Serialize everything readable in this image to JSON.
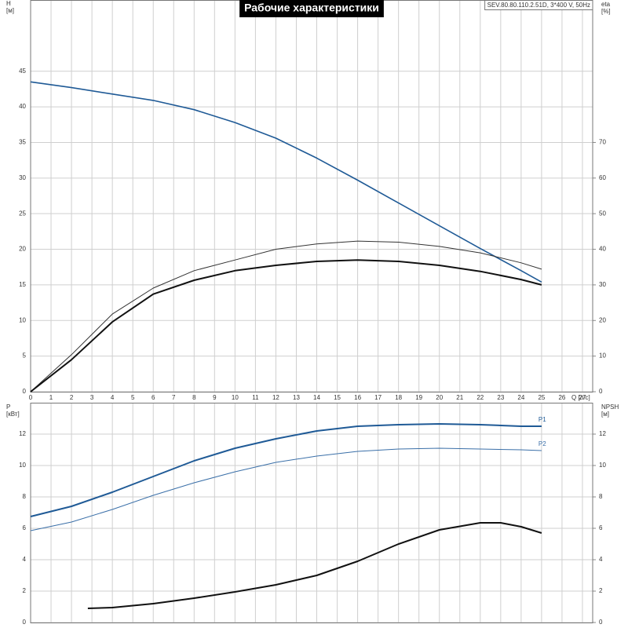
{
  "chart_data": [
    {
      "type": "line",
      "title": "Рабочие характеристики",
      "subtitle": "SEV.80.80.110.2.51D, 3*400 V, 50Hz",
      "x_label": "Q [л/с]",
      "y_label": "H",
      "y_unit": "[м]",
      "y2_label": "eta",
      "y2_unit": "[%]",
      "xlim": [
        0,
        27.5
      ],
      "xticks": [
        0,
        1,
        2,
        3,
        4,
        5,
        6,
        7,
        8,
        9,
        10,
        11,
        12,
        13,
        14,
        15,
        16,
        17,
        18,
        19,
        20,
        21,
        22,
        23,
        24,
        25,
        26,
        27
      ],
      "ylim": [
        0,
        55
      ],
      "yticks": [
        0,
        5,
        10,
        15,
        20,
        25,
        30,
        35,
        40,
        45
      ],
      "y2lim": [
        0,
        110
      ],
      "y2ticks": [
        0,
        10,
        20,
        30,
        40,
        50,
        60,
        70
      ],
      "grid": true,
      "series": [
        {
          "color": "#1f5a96",
          "line_width": 1.6,
          "x": [
            0,
            2,
            4,
            6,
            8,
            10,
            12,
            14,
            16,
            18,
            20,
            22,
            24,
            25
          ],
          "values": [
            43.5,
            42.7,
            41.8,
            40.9,
            39.6,
            37.8,
            35.6,
            32.8,
            29.7,
            26.5,
            23.3,
            20.1,
            17.0,
            15.4
          ]
        },
        {
          "color": "#333333",
          "line_width": 1,
          "axis": "y2",
          "x": [
            0,
            2,
            4,
            6,
            8,
            10,
            12,
            14,
            16,
            18,
            20,
            22,
            24,
            25
          ],
          "values": [
            0,
            10.4,
            21.8,
            29.1,
            34,
            37,
            40,
            41.5,
            42.3,
            42,
            40.8,
            39,
            36.2,
            34.4
          ]
        },
        {
          "color": "#111111",
          "line_width": 2,
          "axis": "y2",
          "x": [
            0,
            2,
            4,
            6,
            8,
            10,
            12,
            14,
            16,
            18,
            20,
            22,
            24,
            25
          ],
          "values": [
            0,
            9,
            19.6,
            27.4,
            31.3,
            34,
            35.5,
            36.6,
            37,
            36.6,
            35.5,
            33.8,
            31.5,
            30
          ]
        }
      ]
    },
    {
      "type": "line",
      "y_label": "P",
      "y_unit": "[кВт]",
      "y2_label": "NPSH",
      "y2_unit": "[м]",
      "xlim": [
        0,
        27.5
      ],
      "ylim": [
        0,
        14
      ],
      "yticks": [
        0,
        2,
        4,
        6,
        8,
        10,
        12
      ],
      "y2lim": [
        0,
        14
      ],
      "y2ticks": [
        0,
        2,
        4,
        6,
        8,
        10,
        12
      ],
      "grid": true,
      "series": [
        {
          "name": "P1",
          "color": "#1f5a96",
          "line_width": 2,
          "x": [
            0,
            2,
            4,
            6,
            8,
            10,
            12,
            14,
            16,
            18,
            20,
            22,
            24,
            25
          ],
          "values": [
            6.75,
            7.4,
            8.3,
            9.3,
            10.3,
            11.1,
            11.7,
            12.2,
            12.5,
            12.6,
            12.65,
            12.6,
            12.5,
            12.5
          ]
        },
        {
          "name": "P2",
          "color": "#3a6fa8",
          "line_width": 1,
          "x": [
            0,
            2,
            4,
            6,
            8,
            10,
            12,
            14,
            16,
            18,
            20,
            22,
            24,
            25
          ],
          "values": [
            5.85,
            6.4,
            7.2,
            8.1,
            8.9,
            9.6,
            10.2,
            10.6,
            10.9,
            11.05,
            11.1,
            11.05,
            11.0,
            10.95
          ]
        },
        {
          "color": "#111111",
          "line_width": 2,
          "axis": "y2",
          "x": [
            2.8,
            4,
            6,
            8,
            10,
            12,
            14,
            16,
            18,
            20,
            22,
            23,
            24,
            25
          ],
          "values": [
            0.9,
            0.95,
            1.2,
            1.55,
            1.95,
            2.4,
            3.0,
            3.9,
            5.0,
            5.9,
            6.35,
            6.35,
            6.1,
            5.7
          ]
        }
      ]
    }
  ]
}
